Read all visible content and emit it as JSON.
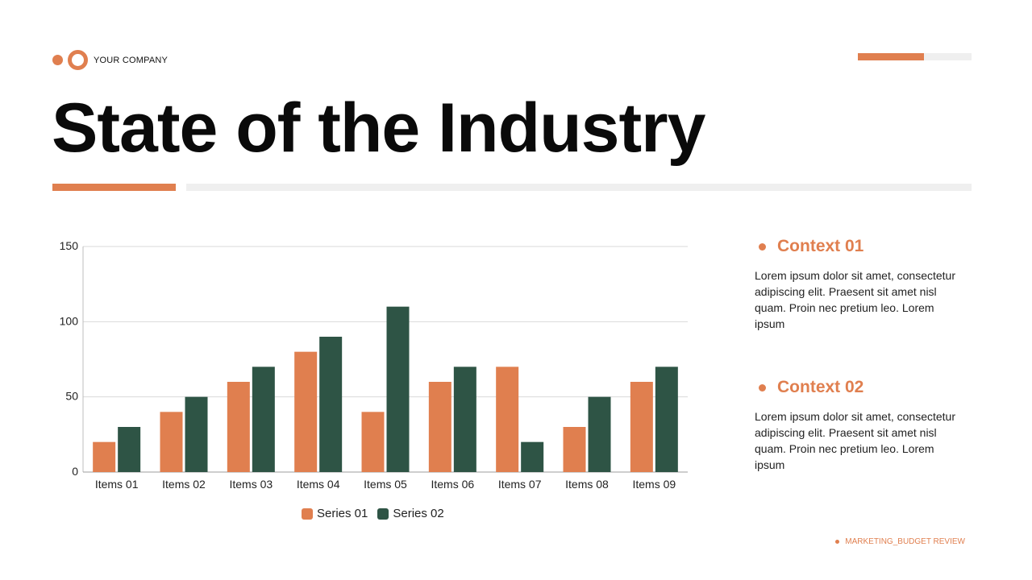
{
  "colors": {
    "accent": "#e07f4f",
    "series2": "#2e5445",
    "track": "#efefef"
  },
  "header": {
    "company": "YOUR COMPANY",
    "title": "State of the Industry",
    "progress_fraction": 0.58
  },
  "chart_data": {
    "type": "bar",
    "title": "",
    "xlabel": "",
    "ylabel": "",
    "ylim": [
      0,
      150
    ],
    "yticks": [
      0,
      50,
      100,
      150
    ],
    "grid": true,
    "legend": "bottom",
    "categories": [
      "Items 01",
      "Items 02",
      "Items 03",
      "Items 04",
      "Items 05",
      "Items 06",
      "Items 07",
      "Items 08",
      "Items 09"
    ],
    "series": [
      {
        "name": "Series 01",
        "color": "#e07f4f",
        "values": [
          20,
          40,
          60,
          80,
          40,
          60,
          70,
          30,
          60
        ]
      },
      {
        "name": "Series 02",
        "color": "#2e5445",
        "values": [
          30,
          50,
          70,
          90,
          110,
          70,
          20,
          50,
          70
        ]
      }
    ]
  },
  "contexts": [
    {
      "title": "Context 01",
      "body": "Lorem ipsum dolor sit amet, consectetur adipiscing elit. Praesent sit amet nisl quam. Proin nec pretium leo. Lorem ipsum"
    },
    {
      "title": "Context 02",
      "body": "Lorem ipsum dolor sit amet, consectetur adipiscing elit. Praesent sit amet nisl quam. Proin nec pretium leo. Lorem ipsum"
    }
  ],
  "footer": {
    "text": "MARKETING_BUDGET REVIEW"
  }
}
